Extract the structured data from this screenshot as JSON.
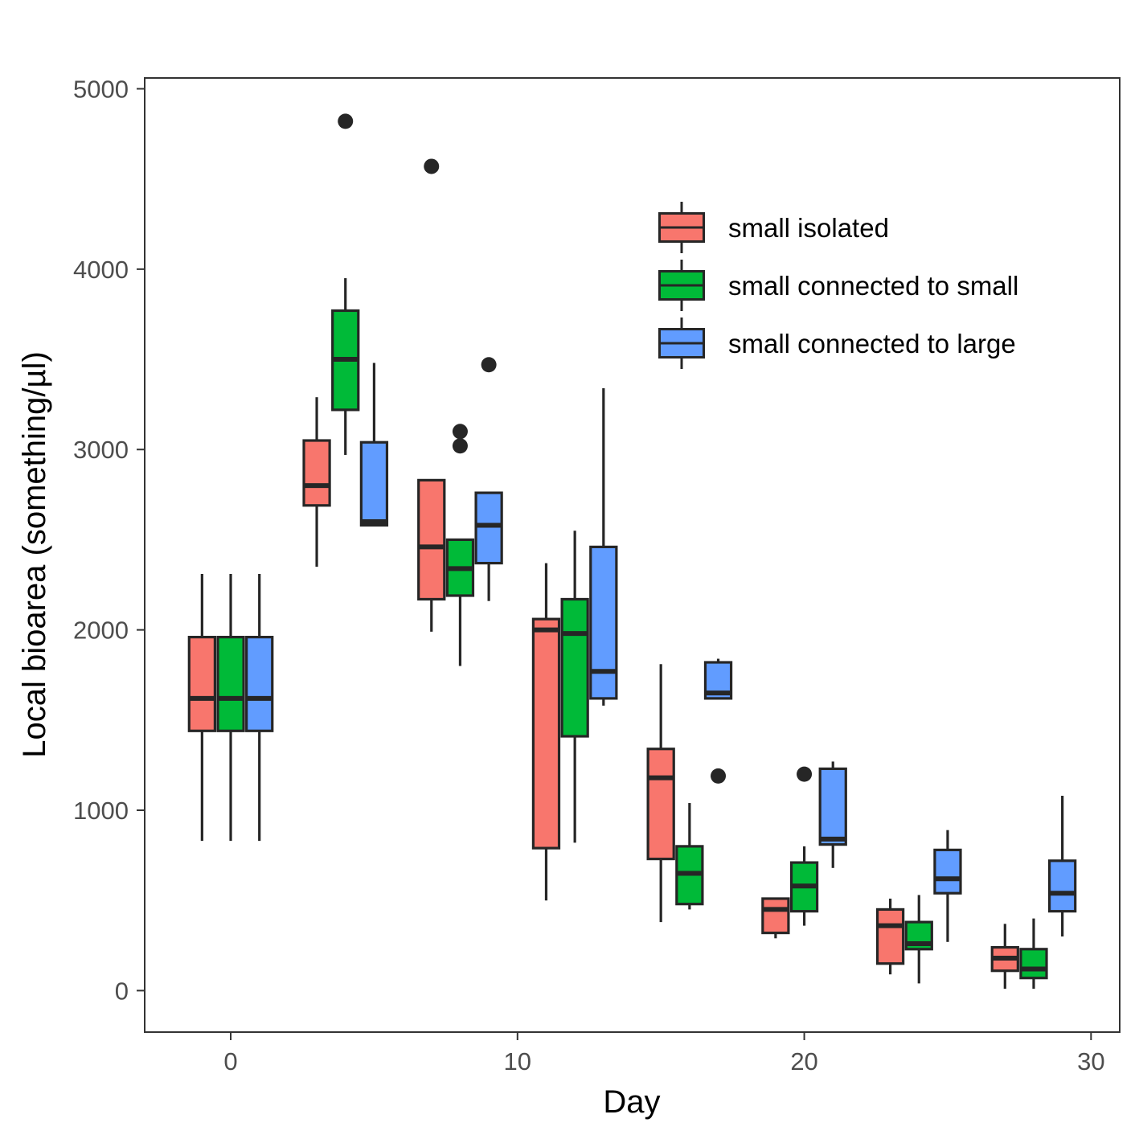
{
  "chart_data": {
    "type": "boxplot",
    "title": "",
    "xlabel": "Day",
    "ylabel": "Local bioarea (something/µl)",
    "xlim": [
      -3,
      31
    ],
    "ylim": [
      -230,
      5060
    ],
    "xticks": [
      0,
      10,
      20,
      30
    ],
    "yticks": [
      0,
      1000,
      2000,
      3000,
      4000,
      5000
    ],
    "grid": false,
    "legend_position": "top-right",
    "series": [
      {
        "name": "small isolated",
        "color": "#F8766D",
        "boxes": [
          {
            "x": -1,
            "low": 830,
            "q1": 1440,
            "median": 1620,
            "q3": 1960,
            "high": 2310,
            "outliers": []
          },
          {
            "x": 3,
            "low": 2350,
            "q1": 2690,
            "median": 2800,
            "q3": 3050,
            "high": 3290,
            "outliers": []
          },
          {
            "x": 7,
            "low": 1990,
            "q1": 2170,
            "median": 2460,
            "q3": 2830,
            "high": 2830,
            "outliers": [
              4570
            ]
          },
          {
            "x": 11,
            "low": 500,
            "q1": 790,
            "median": 2000,
            "q3": 2060,
            "high": 2370,
            "outliers": []
          },
          {
            "x": 15,
            "low": 380,
            "q1": 730,
            "median": 1180,
            "q3": 1340,
            "high": 1810,
            "outliers": []
          },
          {
            "x": 19,
            "low": 290,
            "q1": 320,
            "median": 450,
            "q3": 510,
            "high": 510,
            "outliers": []
          },
          {
            "x": 23,
            "low": 90,
            "q1": 150,
            "median": 360,
            "q3": 450,
            "high": 510,
            "outliers": []
          },
          {
            "x": 27,
            "low": 10,
            "q1": 110,
            "median": 180,
            "q3": 240,
            "high": 370,
            "outliers": []
          }
        ]
      },
      {
        "name": "small connected to small",
        "color": "#00BA38",
        "boxes": [
          {
            "x": 0,
            "low": 830,
            "q1": 1440,
            "median": 1620,
            "q3": 1960,
            "high": 2310,
            "outliers": []
          },
          {
            "x": 4,
            "low": 2970,
            "q1": 3220,
            "median": 3500,
            "q3": 3770,
            "high": 3950,
            "outliers": [
              4820
            ]
          },
          {
            "x": 8,
            "low": 1800,
            "q1": 2190,
            "median": 2340,
            "q3": 2500,
            "high": 2500,
            "outliers": [
              3100,
              3020
            ]
          },
          {
            "x": 12,
            "low": 820,
            "q1": 1410,
            "median": 1980,
            "q3": 2170,
            "high": 2550,
            "outliers": []
          },
          {
            "x": 16,
            "low": 450,
            "q1": 480,
            "median": 650,
            "q3": 800,
            "high": 1040,
            "outliers": []
          },
          {
            "x": 20,
            "low": 360,
            "q1": 440,
            "median": 580,
            "q3": 710,
            "high": 800,
            "outliers": [
              1200
            ]
          },
          {
            "x": 24,
            "low": 40,
            "q1": 230,
            "median": 260,
            "q3": 380,
            "high": 530,
            "outliers": []
          },
          {
            "x": 28,
            "low": 10,
            "q1": 70,
            "median": 120,
            "q3": 230,
            "high": 400,
            "outliers": []
          }
        ]
      },
      {
        "name": "small connected to large",
        "color": "#619CFF",
        "boxes": [
          {
            "x": 1,
            "low": 830,
            "q1": 1440,
            "median": 1620,
            "q3": 1960,
            "high": 2310,
            "outliers": []
          },
          {
            "x": 5,
            "low": 2580,
            "q1": 2580,
            "median": 2600,
            "q3": 3040,
            "high": 3480,
            "outliers": []
          },
          {
            "x": 9,
            "low": 2160,
            "q1": 2370,
            "median": 2580,
            "q3": 2760,
            "high": 2760,
            "outliers": [
              3470
            ]
          },
          {
            "x": 13,
            "low": 1580,
            "q1": 1620,
            "median": 1770,
            "q3": 2460,
            "high": 3340,
            "outliers": []
          },
          {
            "x": 17,
            "low": 1620,
            "q1": 1620,
            "median": 1650,
            "q3": 1820,
            "high": 1840,
            "outliers": [
              1190
            ]
          },
          {
            "x": 21,
            "low": 680,
            "q1": 810,
            "median": 840,
            "q3": 1230,
            "high": 1270,
            "outliers": []
          },
          {
            "x": 25,
            "low": 270,
            "q1": 540,
            "median": 620,
            "q3": 780,
            "high": 890,
            "outliers": []
          },
          {
            "x": 29,
            "low": 300,
            "q1": 440,
            "median": 540,
            "q3": 720,
            "high": 1080,
            "outliers": []
          }
        ]
      }
    ]
  }
}
